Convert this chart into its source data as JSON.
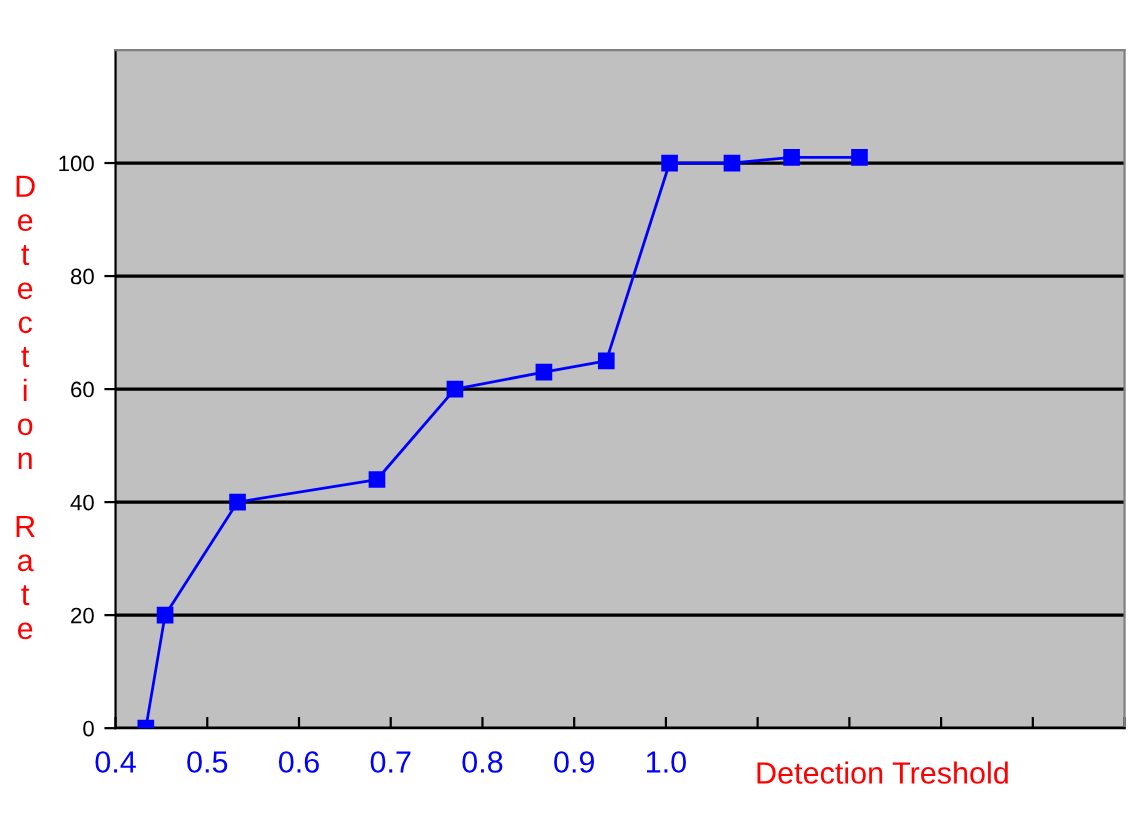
{
  "chart_data": {
    "type": "line",
    "xlabel": "Detection Treshold",
    "ylabel": "Detection Rate",
    "x": [
      0.433,
      0.454,
      0.533,
      0.685,
      0.77,
      0.867,
      0.935,
      1.004,
      1.072,
      1.137,
      1.211
    ],
    "series": [
      {
        "color": "#0000ff",
        "values": [
          0,
          20,
          40,
          44,
          60,
          63,
          65,
          100,
          100,
          101,
          101
        ]
      }
    ],
    "xlim": [
      0.4,
      1.5
    ],
    "xticks": [
      0.4,
      0.5,
      0.6,
      0.7,
      0.8,
      0.9,
      {
        "value": 1.0,
        "label": "1.0"
      },
      {
        "value": 1.1,
        "label": null
      },
      {
        "value": 1.2,
        "label": null
      },
      {
        "value": 1.3,
        "label": null
      },
      {
        "value": 1.4,
        "label": null
      },
      {
        "value": 1.5,
        "label": null
      }
    ],
    "ylim": [
      0,
      120
    ],
    "yticks": [
      0,
      20,
      40,
      60,
      80,
      100
    ],
    "grid": "y",
    "marker": "square",
    "line_style": "solid"
  }
}
